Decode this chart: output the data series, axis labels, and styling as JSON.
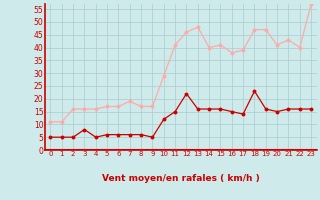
{
  "x": [
    0,
    1,
    2,
    3,
    4,
    5,
    6,
    7,
    8,
    9,
    10,
    11,
    12,
    13,
    14,
    15,
    16,
    17,
    18,
    19,
    20,
    21,
    22,
    23
  ],
  "wind_avg": [
    5,
    5,
    5,
    8,
    5,
    6,
    6,
    6,
    6,
    5,
    12,
    15,
    22,
    16,
    16,
    16,
    15,
    14,
    23,
    16,
    15,
    16,
    16,
    16
  ],
  "wind_gust": [
    11,
    11,
    16,
    16,
    16,
    17,
    17,
    19,
    17,
    17,
    29,
    41,
    46,
    48,
    40,
    41,
    38,
    39,
    47,
    47,
    41,
    43,
    40,
    57
  ],
  "bg_color": "#ceeaea",
  "grid_color": "#aacccc",
  "line_avg_color": "#cc0000",
  "line_gust_color": "#ffaaaa",
  "xlabel": "Vent moyen/en rafales ( km/h )",
  "yticks": [
    0,
    5,
    10,
    15,
    20,
    25,
    30,
    35,
    40,
    45,
    50,
    55
  ],
  "ylim": [
    0,
    57
  ],
  "xlim": [
    -0.5,
    23.5
  ]
}
